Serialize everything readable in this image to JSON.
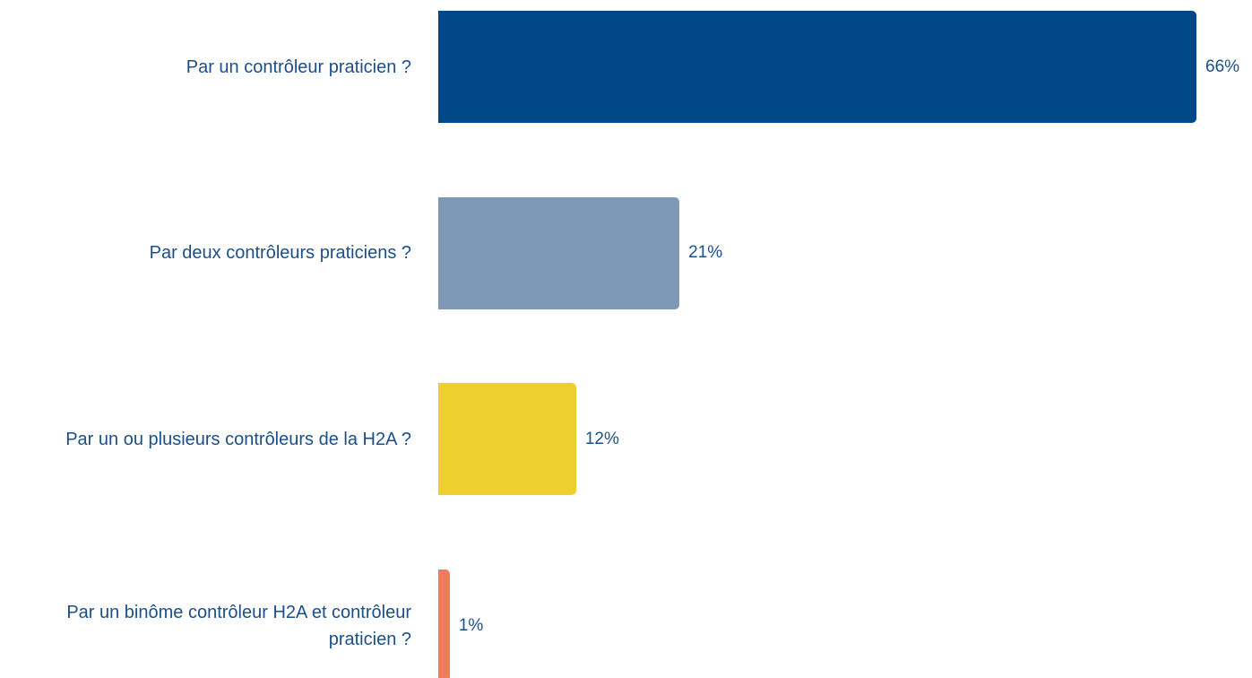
{
  "chart_data": {
    "type": "bar",
    "orientation": "horizontal",
    "categories": [
      "Par un contrôleur praticien ?",
      "Par deux contrôleurs praticiens ?",
      "Par un ou plusieurs contrôleurs de la H2A ?",
      "Par un binôme contrôleur H2A et contrôleur praticien ?"
    ],
    "values": [
      66,
      21,
      12,
      1
    ],
    "value_labels": [
      "66%",
      "21%",
      "12%",
      "1%"
    ],
    "colors": [
      "#014888",
      "#7d99b6",
      "#edd02e",
      "#ef7c5d"
    ]
  }
}
